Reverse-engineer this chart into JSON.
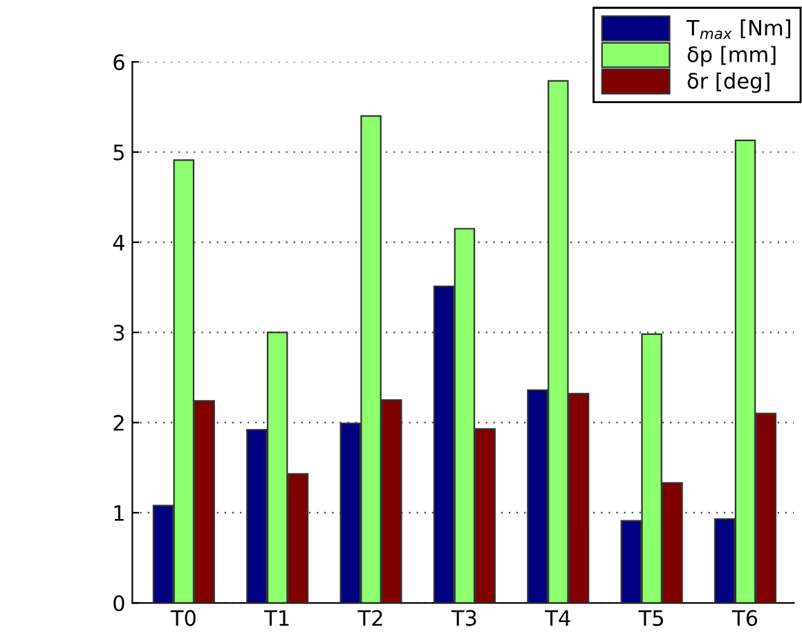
{
  "chart_data": {
    "type": "bar",
    "categories": [
      "T0",
      "T1",
      "T2",
      "T3",
      "T4",
      "T5",
      "T6"
    ],
    "series": [
      {
        "name": "T$_{max}$ [Nm]",
        "color": "#000080",
        "values": [
          1.08,
          1.92,
          1.99,
          3.51,
          2.36,
          0.91,
          0.93
        ]
      },
      {
        "name": "δp [mm]",
        "color": "#8cff6c",
        "values": [
          4.91,
          3.0,
          5.4,
          4.15,
          5.79,
          2.98,
          5.13
        ]
      },
      {
        "name": "δr [deg]",
        "color": "#800000",
        "values": [
          2.24,
          1.43,
          2.25,
          1.93,
          2.32,
          1.33,
          2.1
        ]
      }
    ],
    "ylim": [
      0,
      6
    ],
    "yticks": [
      0,
      1,
      2,
      3,
      4,
      5,
      6
    ],
    "grid": "y",
    "legend": "top right"
  }
}
